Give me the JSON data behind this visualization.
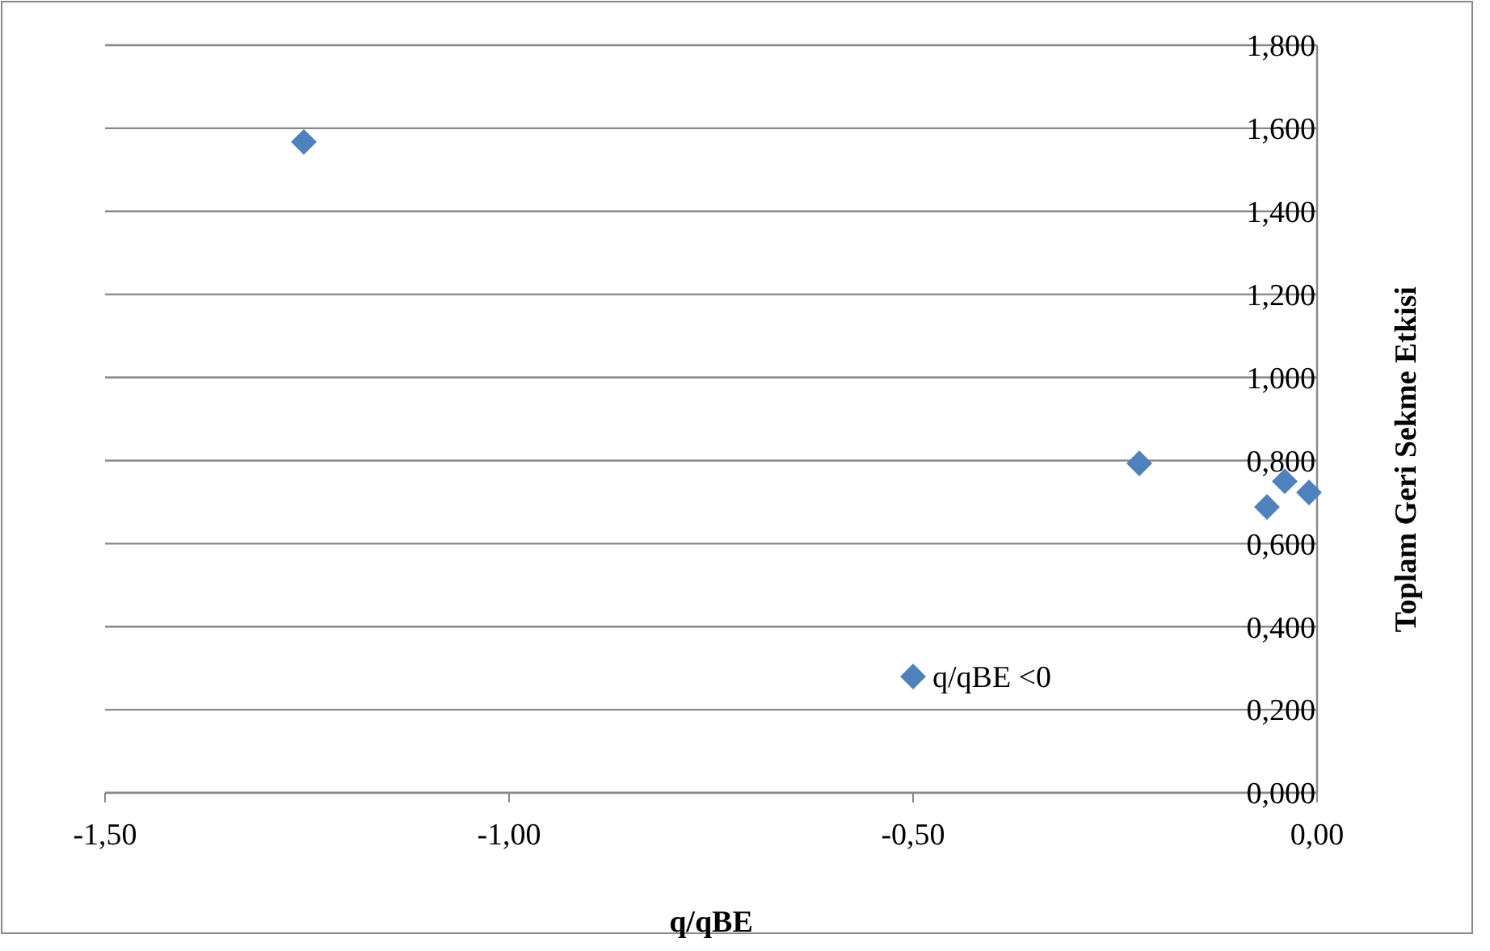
{
  "chart_data": {
    "type": "scatter",
    "xlabel": "q/qBE",
    "ylabel": "Toplam Geri Sekme Etkisi",
    "x": [
      -1.254,
      -0.22,
      -0.04,
      -0.062,
      -0.01
    ],
    "series": [
      {
        "name": "q/qBE <0",
        "color": "#4f81bd",
        "values": [
          1.567,
          0.793,
          0.75,
          0.688,
          0.723
        ]
      }
    ],
    "marker": "diamond",
    "legend": "bottom",
    "grid": "y",
    "xlim": [
      -1.5,
      0
    ],
    "xticks": [
      {
        "value": -1.5,
        "label": "-1,50"
      },
      {
        "value": -1,
        "label": "-1,00"
      },
      {
        "value": -0.5,
        "label": "-0,50"
      },
      {
        "value": 0,
        "label": "0,00"
      }
    ],
    "ylim": [
      0,
      1.8
    ],
    "yticks": [
      {
        "value": 0,
        "label": "0,000"
      },
      {
        "value": 0.2,
        "label": "0,200"
      },
      {
        "value": 0.4,
        "label": "0,400"
      },
      {
        "value": 0.6,
        "label": "0,600"
      },
      {
        "value": 0.8,
        "label": "0,800"
      },
      {
        "value": 1,
        "label": "1,000"
      },
      {
        "value": 1.2,
        "label": "1,200"
      },
      {
        "value": 1.4,
        "label": "1,400"
      },
      {
        "value": 1.6,
        "label": "1,600"
      },
      {
        "value": 1.8,
        "label": "1,800"
      }
    ]
  }
}
